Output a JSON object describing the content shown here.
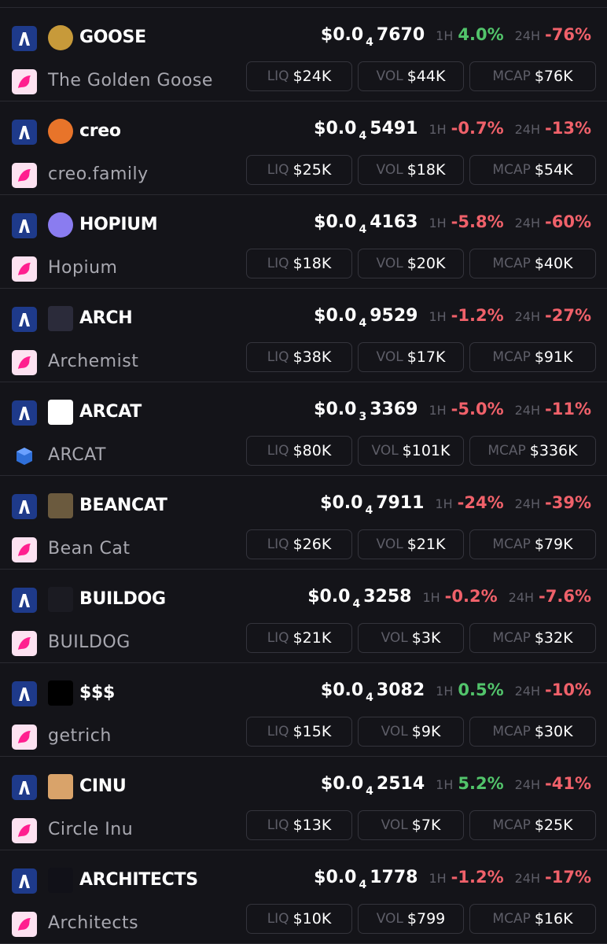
{
  "labels": {
    "h1": "1H",
    "h24": "24H",
    "liq": "LIQ",
    "vol": "VOL",
    "mcap": "MCAP"
  },
  "rows": [
    {
      "symbol": "GOOSE",
      "name": "The Golden Goose",
      "price_prefix": "$0.0",
      "price_zeros": "4",
      "price_digits": "7670",
      "change_1h": "4.0%",
      "change_24h": "-76%",
      "liq": "$24K",
      "vol": "$44K",
      "mcap": "$76K"
    },
    {
      "symbol": "creo",
      "name": "creo.family",
      "price_prefix": "$0.0",
      "price_zeros": "4",
      "price_digits": "5491",
      "change_1h": "-0.7%",
      "change_24h": "-13%",
      "liq": "$25K",
      "vol": "$18K",
      "mcap": "$54K"
    },
    {
      "symbol": "HOPIUM",
      "name": "Hopium",
      "price_prefix": "$0.0",
      "price_zeros": "4",
      "price_digits": "4163",
      "change_1h": "-5.8%",
      "change_24h": "-60%",
      "liq": "$18K",
      "vol": "$20K",
      "mcap": "$40K"
    },
    {
      "symbol": "ARCH",
      "name": "Archemist",
      "price_prefix": "$0.0",
      "price_zeros": "4",
      "price_digits": "9529",
      "change_1h": "-1.2%",
      "change_24h": "-27%",
      "liq": "$38K",
      "vol": "$17K",
      "mcap": "$91K"
    },
    {
      "symbol": "ARCAT",
      "name": "ARCAT",
      "price_prefix": "$0.0",
      "price_zeros": "3",
      "price_digits": "3369",
      "change_1h": "-5.0%",
      "change_24h": "-11%",
      "liq": "$80K",
      "vol": "$101K",
      "mcap": "$336K"
    },
    {
      "symbol": "BEANCAT",
      "name": "Bean Cat",
      "price_prefix": "$0.0",
      "price_zeros": "4",
      "price_digits": "7911",
      "change_1h": "-24%",
      "change_24h": "-39%",
      "liq": "$26K",
      "vol": "$21K",
      "mcap": "$79K"
    },
    {
      "symbol": "BUILDOG",
      "name": "BUILDOG",
      "price_prefix": "$0.0",
      "price_zeros": "4",
      "price_digits": "3258",
      "change_1h": "-0.2%",
      "change_24h": "-7.6%",
      "liq": "$21K",
      "vol": "$3K",
      "mcap": "$32K"
    },
    {
      "symbol": "$$$",
      "name": "getrich",
      "price_prefix": "$0.0",
      "price_zeros": "4",
      "price_digits": "3082",
      "change_1h": "0.5%",
      "change_24h": "-10%",
      "liq": "$15K",
      "vol": "$9K",
      "mcap": "$30K"
    },
    {
      "symbol": "CINU",
      "name": "Circle Inu",
      "price_prefix": "$0.0",
      "price_zeros": "4",
      "price_digits": "2514",
      "change_1h": "5.2%",
      "change_24h": "-41%",
      "liq": "$13K",
      "vol": "$7K",
      "mcap": "$25K"
    },
    {
      "symbol": "ARCHITECTS",
      "name": "Architects",
      "price_prefix": "$0.0",
      "price_zeros": "4",
      "price_digits": "1778",
      "change_1h": "-1.2%",
      "change_24h": "-17%",
      "liq": "$10K",
      "vol": "$799",
      "mcap": "$16K"
    }
  ]
}
